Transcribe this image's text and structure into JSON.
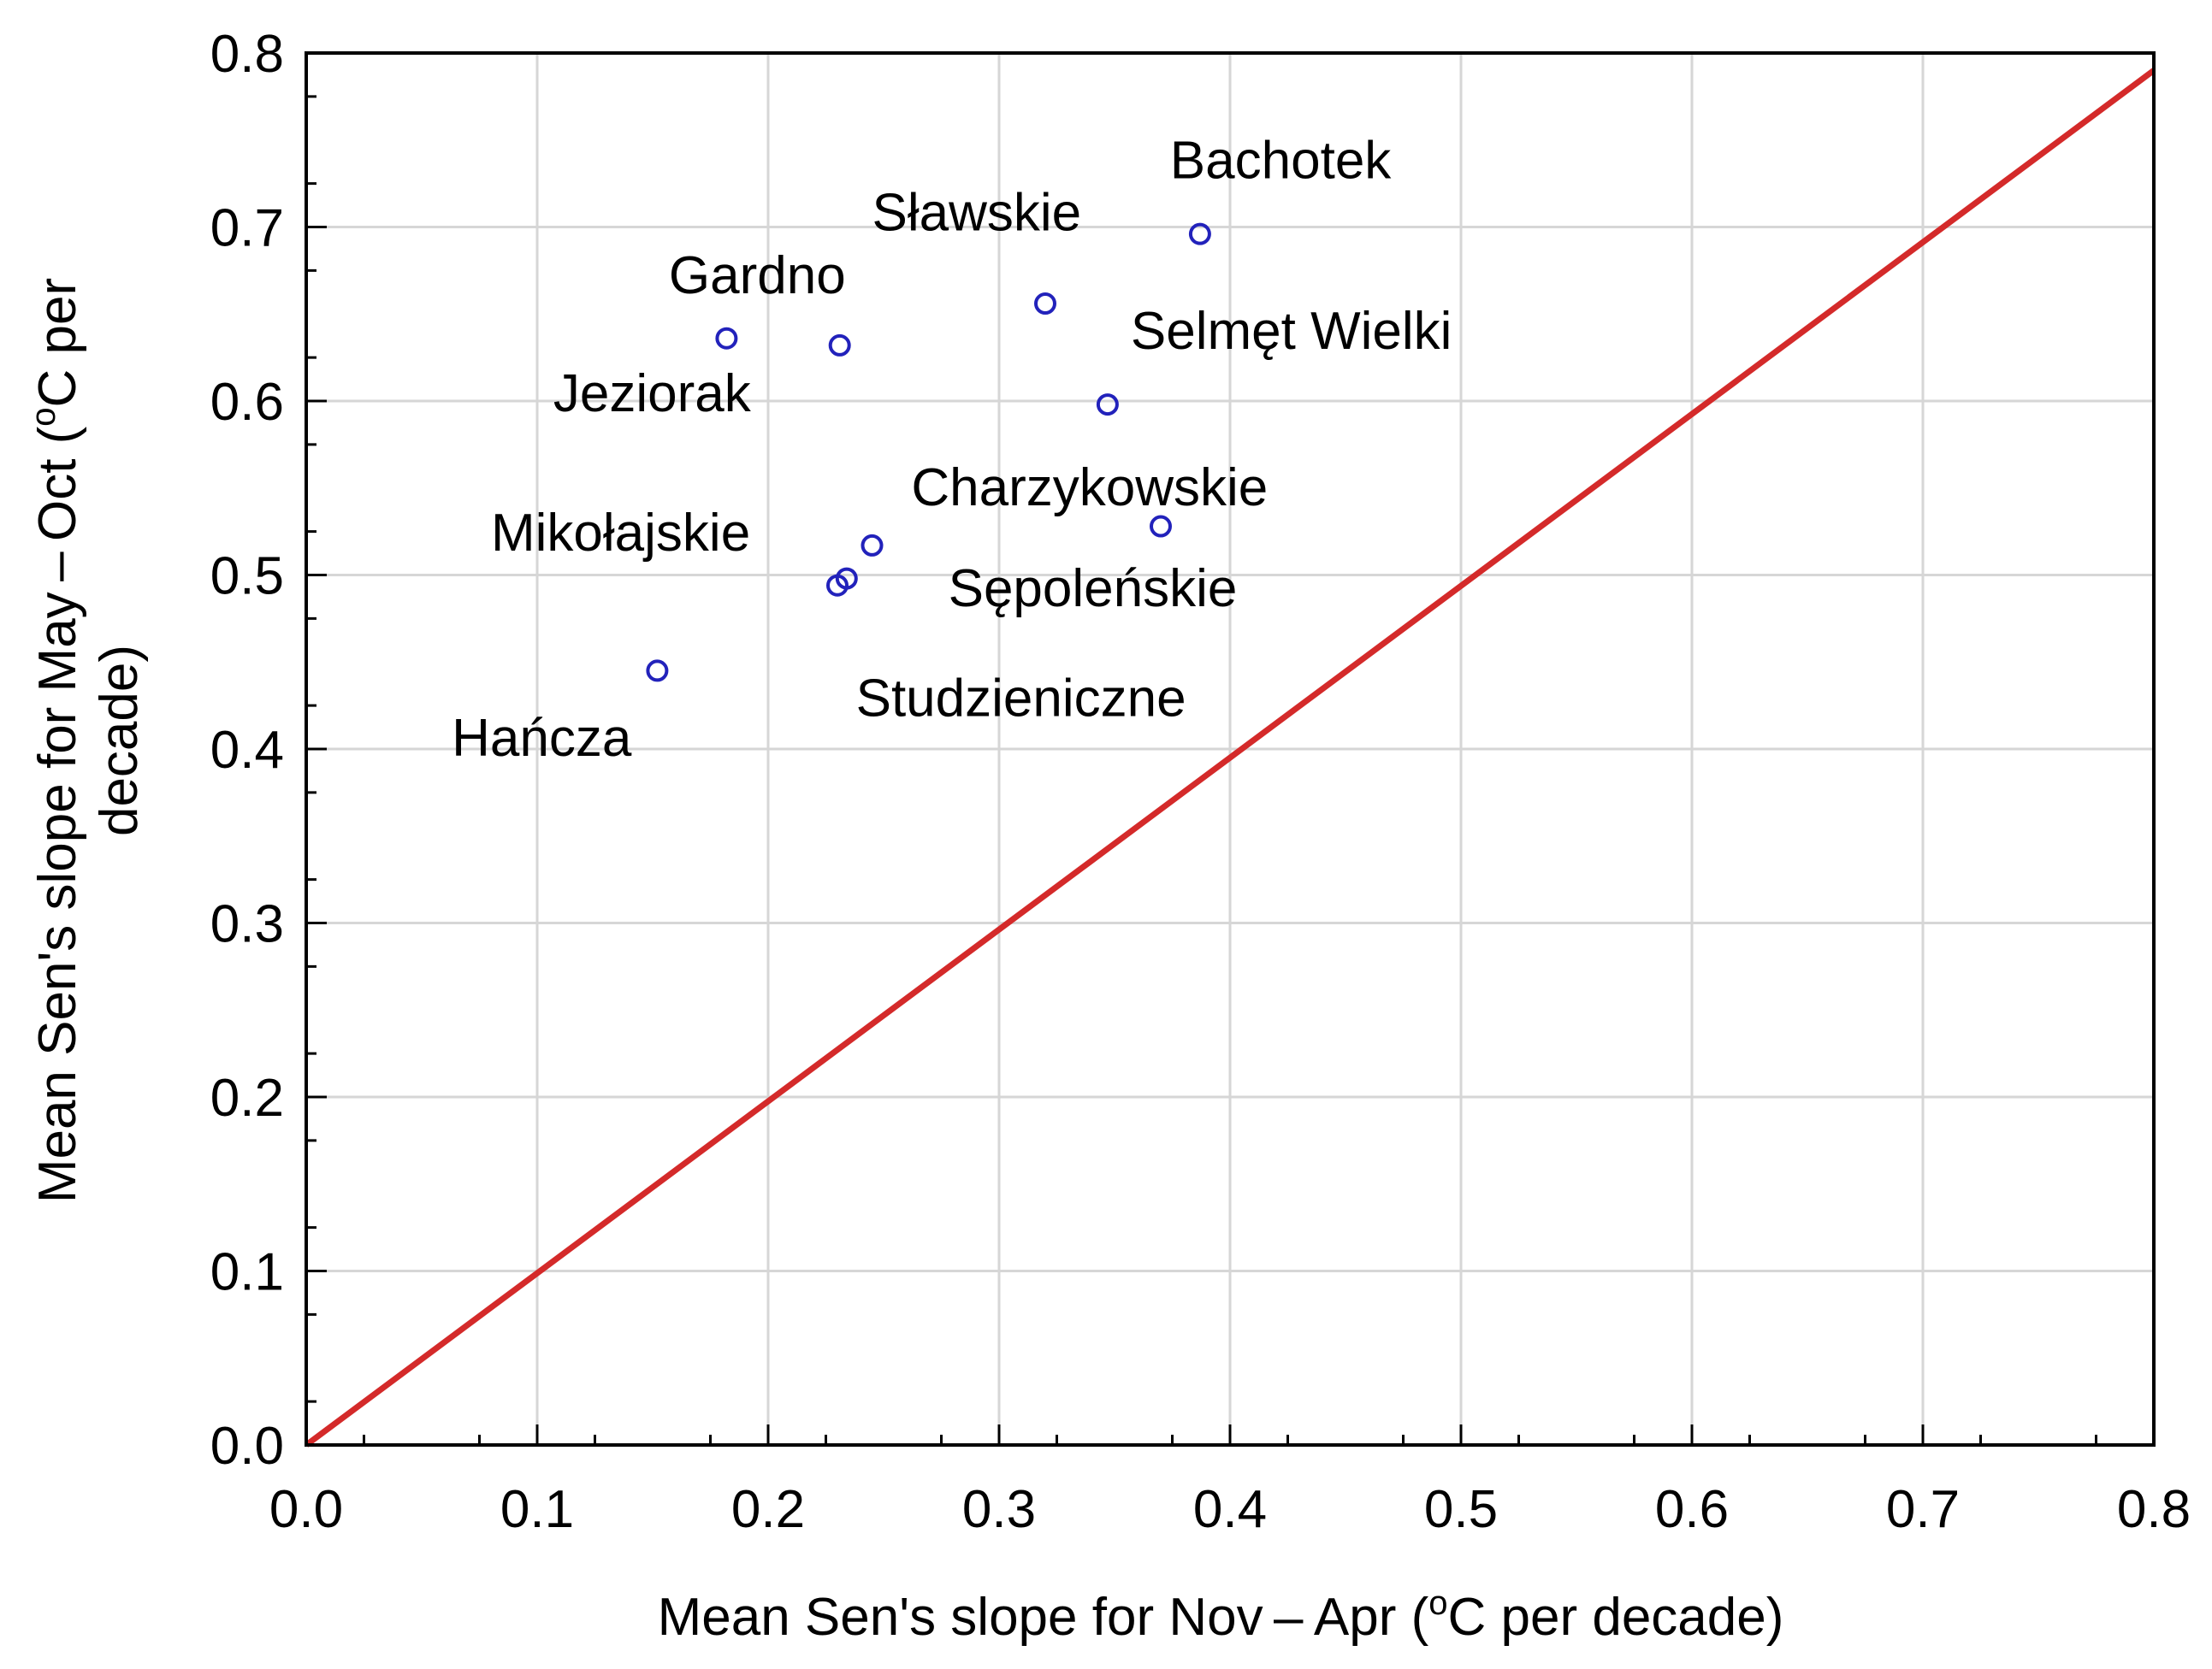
{
  "chart_data": {
    "type": "scatter",
    "xlabel": {
      "prefix": "Mean Sen's slope for Nov – Apr (",
      "sup": "o",
      "suffix": "C per decade)"
    },
    "ylabel": {
      "line1_prefix": "Mean Sen's slope for May – Oct (",
      "line1_sup": "o",
      "line1_suffix": "C per",
      "line2": "decade)"
    },
    "xlim": [
      0.0,
      0.8
    ],
    "ylim": [
      0.0,
      0.8
    ],
    "x_ticks": [
      "0.0",
      "0.1",
      "0.2",
      "0.3",
      "0.4",
      "0.5",
      "0.6",
      "0.7",
      "0.8"
    ],
    "y_ticks": [
      "0.0",
      "0.1",
      "0.2",
      "0.3",
      "0.4",
      "0.5",
      "0.6",
      "0.7",
      "0.8"
    ],
    "grid": true,
    "reference_line": {
      "x": [
        0.0,
        0.8
      ],
      "y": [
        0.0,
        0.79
      ],
      "color": "#d42a2a"
    },
    "marker_color": "#2222bb",
    "points": [
      {
        "x": 0.387,
        "y": 0.696
      },
      {
        "x": 0.32,
        "y": 0.656
      },
      {
        "x": 0.182,
        "y": 0.636
      },
      {
        "x": 0.231,
        "y": 0.632
      },
      {
        "x": 0.347,
        "y": 0.598
      },
      {
        "x": 0.37,
        "y": 0.528
      },
      {
        "x": 0.245,
        "y": 0.517
      },
      {
        "x": 0.234,
        "y": 0.498
      },
      {
        "x": 0.23,
        "y": 0.494
      },
      {
        "x": 0.152,
        "y": 0.445
      }
    ],
    "labels": [
      {
        "text": "Bachotek",
        "x": 0.374,
        "y": 0.728
      },
      {
        "text": "Sławskie",
        "x": 0.245,
        "y": 0.698
      },
      {
        "text": "Gardno",
        "x": 0.157,
        "y": 0.662
      },
      {
        "text": "Selmęt Wielki",
        "x": 0.357,
        "y": 0.63
      },
      {
        "text": "Jeziorak",
        "x": 0.107,
        "y": 0.594
      },
      {
        "text": "Charzykowskie",
        "x": 0.262,
        "y": 0.54
      },
      {
        "text": "Mikołajskie",
        "x": 0.08,
        "y": 0.514
      },
      {
        "text": "Sępoleńskie",
        "x": 0.278,
        "y": 0.482
      },
      {
        "text": "Studzieniczne",
        "x": 0.238,
        "y": 0.419
      },
      {
        "text": "Hańcza",
        "x": 0.063,
        "y": 0.396
      }
    ]
  }
}
